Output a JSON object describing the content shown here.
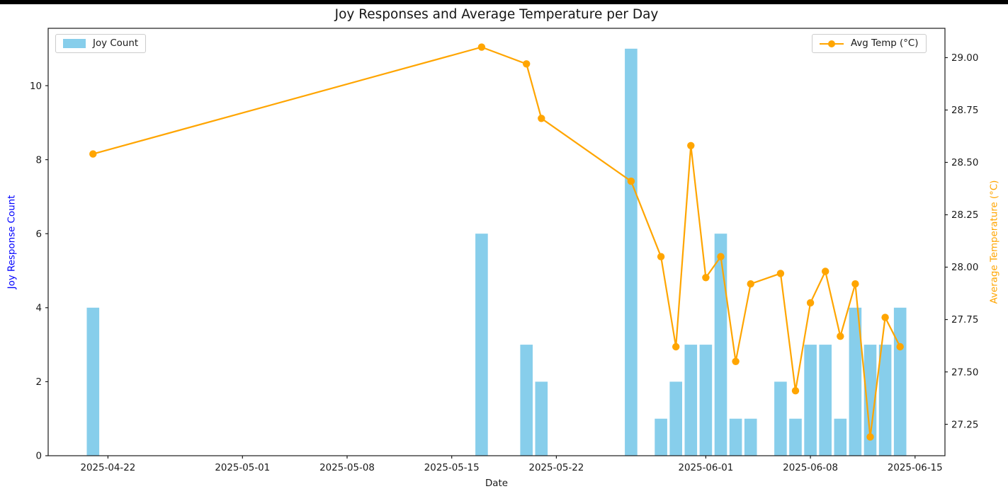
{
  "figure": {
    "top_strip_color": "#000000",
    "background": "#ffffff"
  },
  "chart_data": {
    "type": "combo-bar-line",
    "title": "Joy Responses and Average Temperature per Day",
    "xlabel": "Date",
    "grid": false,
    "legend": [
      {
        "label": "Joy Count",
        "swatch": "patch",
        "position": "upper-left"
      },
      {
        "label": "Avg Temp (°C)",
        "swatch": "line-dot",
        "position": "upper-right"
      }
    ],
    "x_axis": {
      "label": "Date",
      "range": [
        "2025-04-18",
        "2025-06-17"
      ],
      "tick_dates": [
        "2025-04-22",
        "2025-05-01",
        "2025-05-08",
        "2025-05-15",
        "2025-05-22",
        "2025-06-01",
        "2025-06-08",
        "2025-06-15"
      ]
    },
    "y_axis_left": {
      "label": "Joy Response Count",
      "label_color": "#0000FF",
      "range": [
        0,
        11.55
      ],
      "ticks": [
        0,
        2,
        4,
        6,
        8,
        10
      ]
    },
    "y_axis_right": {
      "label": "Average Temperature (°C)",
      "label_color": "#FFA500",
      "range": [
        27.1,
        29.14
      ],
      "ticks": [
        27.25,
        27.5,
        27.75,
        28.0,
        28.25,
        28.5,
        28.75,
        29.0
      ],
      "tick_decimals": 2
    },
    "x": [
      "2025-04-21",
      "2025-05-17",
      "2025-05-20",
      "2025-05-21",
      "2025-05-27",
      "2025-05-29",
      "2025-05-30",
      "2025-05-31",
      "2025-06-01",
      "2025-06-02",
      "2025-06-03",
      "2025-06-04",
      "2025-06-06",
      "2025-06-07",
      "2025-06-08",
      "2025-06-09",
      "2025-06-10",
      "2025-06-11",
      "2025-06-12",
      "2025-06-13",
      "2025-06-14"
    ],
    "series": [
      {
        "name": "Joy Count",
        "type": "bar",
        "axis": "left",
        "color": "#87CEEB",
        "values": [
          4,
          6,
          3,
          2,
          11,
          1,
          2,
          3,
          3,
          6,
          1,
          1,
          2,
          1,
          3,
          3,
          1,
          4,
          3,
          3,
          4
        ]
      },
      {
        "name": "Avg Temp (°C)",
        "type": "line",
        "axis": "right",
        "color": "#FFA500",
        "marker": "circle",
        "values": [
          28.54,
          29.05,
          28.97,
          28.71,
          28.41,
          28.05,
          27.62,
          28.58,
          27.95,
          28.05,
          27.55,
          27.92,
          27.97,
          27.41,
          27.83,
          27.98,
          27.67,
          27.92,
          27.19,
          27.76,
          27.62
        ]
      }
    ],
    "text_color": "#1a1a1a",
    "spine_color": "#1a1a1a"
  }
}
